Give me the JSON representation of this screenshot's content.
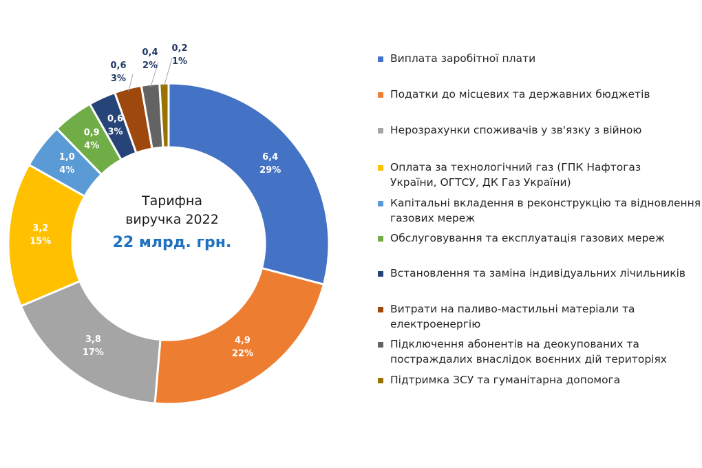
{
  "chart_data": {
    "type": "pie",
    "center_label": {
      "line1": "Тарифна",
      "line2": "виручка 2022",
      "total": "22 млрд. грн."
    },
    "slices": [
      {
        "name": "Виплата заробітної плати",
        "value": 6.4,
        "value_label": "6,4",
        "percent_label": "29%",
        "color": "#4472c4"
      },
      {
        "name": "Податки до місцевих та державних бюджетів",
        "value": 4.9,
        "value_label": "4,9",
        "percent_label": "22%",
        "color": "#ed7d31"
      },
      {
        "name": "Нерозрахунки споживачів у зв'язку з війною",
        "value": 3.8,
        "value_label": "3,8",
        "percent_label": "17%",
        "color": "#a5a5a5"
      },
      {
        "name": "Оплата за технологічний газ (ГПК Нафтогаз України, ОГТСУ, ДК Газ України)",
        "value": 3.2,
        "value_label": "3,2",
        "percent_label": "15%",
        "color": "#ffc000"
      },
      {
        "name": "Капітальні вкладення в реконструкцію та відновлення газових мереж",
        "value": 1.0,
        "value_label": "1,0",
        "percent_label": "4%",
        "color": "#5b9bd5"
      },
      {
        "name": "Обслуговування та експлуатація газових мереж",
        "value": 0.9,
        "value_label": "0,9",
        "percent_label": "4%",
        "color": "#70ad47"
      },
      {
        "name": "Встановлення та заміна індивідуальних лічильників",
        "value": 0.6,
        "value_label": "0,6",
        "percent_label": "3%",
        "color": "#264478"
      },
      {
        "name": "Витрати на паливо-мастильні матеріали та електроенергію",
        "value": 0.6,
        "value_label": "0,6",
        "percent_label": "3%",
        "color": "#9e480e"
      },
      {
        "name": "Підключення абонентів на деокупованих та постраждалих внаслідок воєнних дій територіях",
        "value": 0.4,
        "value_label": "0,4",
        "percent_label": "2%",
        "color": "#636363"
      },
      {
        "name": "Підтримка ЗСУ та гуманітарна допомога",
        "value": 0.2,
        "value_label": "0,2",
        "percent_label": "1%",
        "color": "#997300"
      }
    ],
    "legend_position": "right",
    "inside_label_color": "#ffffff",
    "outside_label_color": "#1f3864"
  }
}
